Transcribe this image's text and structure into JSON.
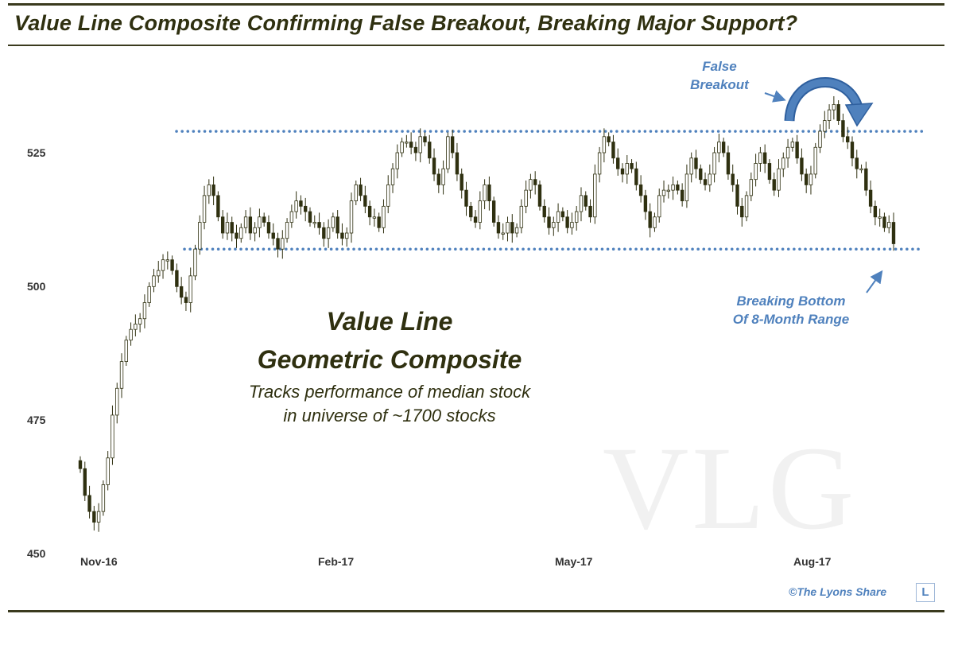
{
  "header": {
    "title": "Value Line Composite Confirming False Breakout, Breaking Major Support?"
  },
  "chart_data": {
    "type": "candlestick",
    "title": "Value Line Composite Confirming False Breakout, Breaking Major Support?",
    "y_ticks": [
      "450",
      "475",
      "500",
      "525"
    ],
    "x_ticks": [
      "Nov-16",
      "Feb-17",
      "May-17",
      "Aug-17"
    ],
    "ylim": [
      450,
      535
    ],
    "grid": false,
    "resistance_level": 529,
    "support_level": 507,
    "up_color": "#ffffff",
    "down_color": "#2f3010",
    "line_color": "#4f81bd",
    "closes": [
      466,
      461,
      458,
      456,
      458,
      463,
      468,
      476,
      481,
      486,
      490,
      492,
      493,
      494,
      497,
      500,
      502,
      503,
      505,
      505,
      503,
      500,
      498,
      497,
      502,
      507,
      512,
      517,
      519,
      517,
      513,
      510,
      512,
      510,
      509,
      511,
      513,
      510,
      511,
      513,
      512,
      510,
      509,
      507,
      509,
      512,
      514,
      516,
      515,
      514,
      512,
      512,
      511,
      509,
      511,
      513,
      510,
      509,
      510,
      516,
      519,
      517,
      515,
      513,
      513,
      511,
      515,
      519,
      522,
      525,
      527,
      527,
      526,
      525,
      528,
      527,
      524,
      521,
      519,
      522,
      528,
      525,
      521,
      518,
      515,
      513,
      512,
      516,
      519,
      516,
      512,
      510,
      510,
      512,
      510,
      511,
      515,
      518,
      520,
      519,
      515,
      513,
      511,
      512,
      514,
      513,
      511,
      512,
      514,
      517,
      515,
      513,
      521,
      525,
      528,
      527,
      524,
      522,
      521,
      523,
      522,
      519,
      517,
      514,
      511,
      513,
      517,
      518,
      518,
      519,
      518,
      516,
      521,
      524,
      522,
      520,
      519,
      521,
      525,
      527,
      525,
      521,
      519,
      515,
      513,
      517,
      520,
      523,
      525,
      523,
      520,
      518,
      522,
      524,
      526,
      527,
      524,
      521,
      519,
      521,
      526,
      529,
      531,
      533,
      534,
      531,
      528,
      527,
      524,
      522,
      522,
      518,
      515,
      513,
      513,
      511,
      512,
      508
    ]
  },
  "annotations": {
    "false_breakout": [
      "False",
      "Breakout"
    ],
    "breaking_bottom": [
      "Breaking Bottom",
      "Of 8-Month Range"
    ]
  },
  "center_label": {
    "line1": "Value Line",
    "line2": "Geometric Composite",
    "desc1": "Tracks performance of median stock",
    "desc2": "in universe of ~1700 stocks"
  },
  "watermark": "VLG",
  "footer": {
    "credit": "©The Lyons Share",
    "logo": "L"
  }
}
